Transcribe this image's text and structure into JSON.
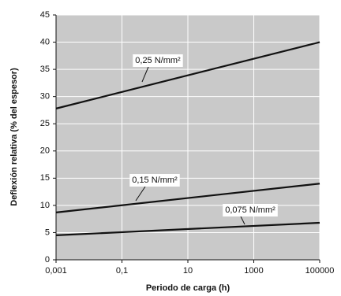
{
  "chart_data": {
    "type": "line",
    "xlabel": "Periodo de carga (h)",
    "ylabel": "Deflexión relativa (% del espesor)",
    "x": [
      0.001,
      100000
    ],
    "series": [
      {
        "name": "0,25 N/mm²",
        "color": "#111111",
        "values": [
          27.8,
          40
        ]
      },
      {
        "name": "0,15 N/mm²",
        "color": "#111111",
        "values": [
          8.7,
          14
        ]
      },
      {
        "name": "0,075 N/mm²",
        "color": "#111111",
        "values": [
          4.5,
          6.8
        ]
      }
    ],
    "xlim": [
      0.001,
      100000
    ],
    "xticks": [
      {
        "value": 0.001,
        "label": "0,001"
      },
      {
        "value": 0.1,
        "label": "0,1"
      },
      10,
      1000,
      100000
    ],
    "xscale": "log",
    "ylim": [
      0,
      45
    ],
    "yticks": [
      0,
      5,
      10,
      15,
      20,
      25,
      30,
      35,
      40,
      45
    ],
    "grid": true
  }
}
